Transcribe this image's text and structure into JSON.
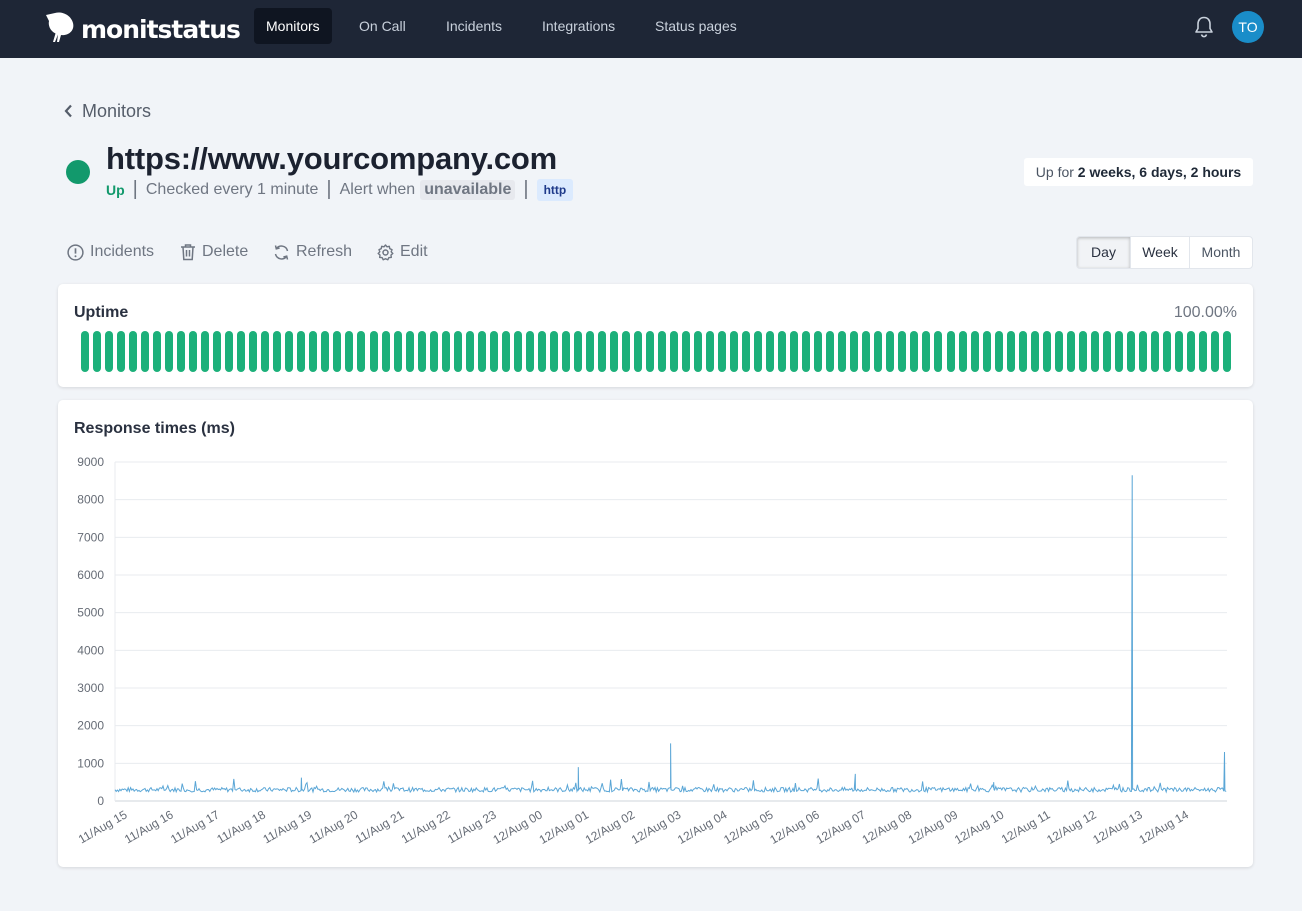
{
  "app": {
    "name": "monitstatus"
  },
  "nav": {
    "items": [
      {
        "label": "Monitors",
        "active": true
      },
      {
        "label": "On Call",
        "active": false
      },
      {
        "label": "Incidents",
        "active": false
      },
      {
        "label": "Integrations",
        "active": false
      },
      {
        "label": "Status pages",
        "active": false
      }
    ],
    "avatar_initials": "TO",
    "bell_icon": "bell-icon"
  },
  "breadcrumb": {
    "back_label": "Monitors",
    "icon": "chevron-left-icon"
  },
  "monitor": {
    "url": "https://www.yourcompany.com",
    "status": "Up",
    "status_color": "#12996c",
    "check_interval": "Checked every 1 minute",
    "alert_prefix": "Alert when",
    "alert_condition": "unavailable",
    "type_tag": "http",
    "uptime_prefix": "Up for",
    "uptime_duration": "2 weeks, 6 days, 2 hours"
  },
  "actions": [
    {
      "label": "Incidents",
      "icon": "alert-circle-icon"
    },
    {
      "label": "Delete",
      "icon": "trash-icon"
    },
    {
      "label": "Refresh",
      "icon": "refresh-icon"
    },
    {
      "label": "Edit",
      "icon": "gear-icon"
    }
  ],
  "range": {
    "options": [
      "Day",
      "Week",
      "Month"
    ],
    "selected": "Day"
  },
  "uptime": {
    "title": "Uptime",
    "percent": "100.00%",
    "bar_count": 96,
    "bar_color": "#1cb07a",
    "all_up": true
  },
  "response": {
    "title": "Response times (ms)"
  },
  "chart_data": {
    "type": "line",
    "title": "Response times (ms)",
    "xlabel": "",
    "ylabel": "",
    "ylim": [
      0,
      9000
    ],
    "yticks": [
      0,
      1000,
      2000,
      3000,
      4000,
      5000,
      6000,
      7000,
      8000,
      9000
    ],
    "xticks": [
      "11/Aug 15",
      "11/Aug 16",
      "11/Aug 17",
      "11/Aug 18",
      "11/Aug 19",
      "11/Aug 20",
      "11/Aug 21",
      "11/Aug 22",
      "11/Aug 23",
      "12/Aug 00",
      "12/Aug 01",
      "12/Aug 02",
      "12/Aug 03",
      "12/Aug 04",
      "12/Aug 05",
      "12/Aug 06",
      "12/Aug 07",
      "12/Aug 08",
      "12/Aug 09",
      "12/Aug 10",
      "12/Aug 11",
      "12/Aug 12",
      "12/Aug 13",
      "12/Aug 14"
    ],
    "grid": true,
    "line_color": "#5aa6d6",
    "baseline_ms": 300,
    "series": [
      {
        "x": [
          "11/Aug 15",
          "11/Aug 16",
          "11/Aug 17",
          "11/Aug 18",
          "11/Aug 19",
          "11/Aug 20",
          "11/Aug 21",
          "11/Aug 22",
          "11/Aug 23",
          "12/Aug 00",
          "12/Aug 01",
          "12/Aug 02",
          "12/Aug 03",
          "12/Aug 04",
          "12/Aug 05",
          "12/Aug 06",
          "12/Aug 07",
          "12/Aug 08",
          "12/Aug 09",
          "12/Aug 10",
          "12/Aug 11",
          "12/Aug 12",
          "12/Aug 13",
          "12/Aug 14"
        ],
        "values": [
          310,
          300,
          320,
          620,
          300,
          310,
          305,
          320,
          330,
          900,
          310,
          1530,
          320,
          330,
          340,
          720,
          310,
          320,
          500,
          310,
          320,
          8650,
          310,
          1300
        ]
      }
    ]
  }
}
